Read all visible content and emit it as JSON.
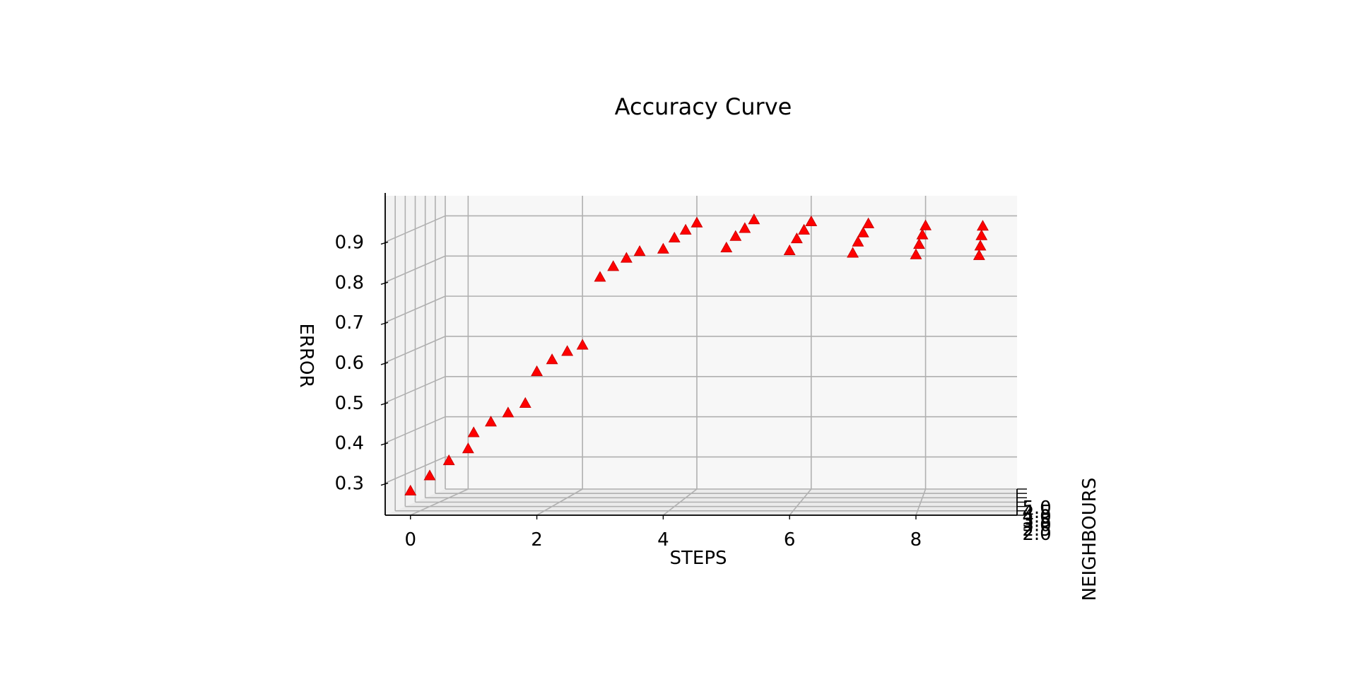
{
  "chart_data": {
    "type": "scatter",
    "projection": "3d",
    "title": "Accuracy Curve",
    "xlabel": "STEPS",
    "ylabel": "NEIGHBOURS",
    "zlabel": "ERROR",
    "x_ticks": [
      "0",
      "2",
      "4",
      "6",
      "8"
    ],
    "y_ticks": [
      "2.0",
      "2.5",
      "3.0",
      "3.5",
      "4.0",
      "4.5",
      "5.0"
    ],
    "z_ticks": [
      "0.3",
      "0.4",
      "0.5",
      "0.6",
      "0.7",
      "0.8",
      "0.9"
    ],
    "xlim": [
      -0.4,
      9.6
    ],
    "ylim": [
      2,
      5
    ],
    "zlim": [
      0.22,
      0.95
    ],
    "grid": true,
    "marker": "triangle-up",
    "marker_color": "#ff0000",
    "pane_color": "#f7f7f7",
    "grid_color": "#b0b0b0",
    "series": [
      {
        "points": [
          {
            "x": 0,
            "y": 2,
            "z": 0.28
          },
          {
            "x": 0,
            "y": 3,
            "z": 0.296
          },
          {
            "x": 0,
            "y": 4,
            "z": 0.312
          },
          {
            "x": 0,
            "y": 5,
            "z": 0.32
          },
          {
            "x": 1,
            "y": 2,
            "z": 0.425
          },
          {
            "x": 1,
            "y": 3,
            "z": 0.43
          },
          {
            "x": 1,
            "y": 4,
            "z": 0.431
          },
          {
            "x": 1,
            "y": 5,
            "z": 0.433
          },
          {
            "x": 2,
            "y": 2,
            "z": 0.577
          },
          {
            "x": 2,
            "y": 3,
            "z": 0.585
          },
          {
            "x": 2,
            "y": 4,
            "z": 0.584
          },
          {
            "x": 2,
            "y": 5,
            "z": 0.578
          },
          {
            "x": 3,
            "y": 2,
            "z": 0.812
          },
          {
            "x": 3,
            "y": 3,
            "z": 0.817
          },
          {
            "x": 3,
            "y": 4,
            "z": 0.816
          },
          {
            "x": 3,
            "y": 5,
            "z": 0.811
          },
          {
            "x": 4,
            "y": 2,
            "z": 0.882
          },
          {
            "x": 4,
            "y": 3,
            "z": 0.888
          },
          {
            "x": 4,
            "y": 4,
            "z": 0.886
          },
          {
            "x": 4,
            "y": 5,
            "z": 0.882
          },
          {
            "x": 5,
            "y": 2,
            "z": 0.885
          },
          {
            "x": 5,
            "y": 3,
            "z": 0.892
          },
          {
            "x": 5,
            "y": 4,
            "z": 0.89
          },
          {
            "x": 5,
            "y": 5,
            "z": 0.89
          },
          {
            "x": 6,
            "y": 2,
            "z": 0.878
          },
          {
            "x": 6,
            "y": 3,
            "z": 0.886
          },
          {
            "x": 6,
            "y": 4,
            "z": 0.886
          },
          {
            "x": 6,
            "y": 5,
            "z": 0.885
          },
          {
            "x": 7,
            "y": 2,
            "z": 0.872
          },
          {
            "x": 7,
            "y": 3,
            "z": 0.878
          },
          {
            "x": 7,
            "y": 4,
            "z": 0.879
          },
          {
            "x": 7,
            "y": 5,
            "z": 0.88
          },
          {
            "x": 8,
            "y": 2,
            "z": 0.868
          },
          {
            "x": 8,
            "y": 3,
            "z": 0.872
          },
          {
            "x": 8,
            "y": 4,
            "z": 0.874
          },
          {
            "x": 8,
            "y": 5,
            "z": 0.875
          },
          {
            "x": 9,
            "y": 2,
            "z": 0.866
          },
          {
            "x": 9,
            "y": 3,
            "z": 0.868
          },
          {
            "x": 9,
            "y": 4,
            "z": 0.872
          },
          {
            "x": 9,
            "y": 5,
            "z": 0.874
          }
        ]
      }
    ]
  }
}
